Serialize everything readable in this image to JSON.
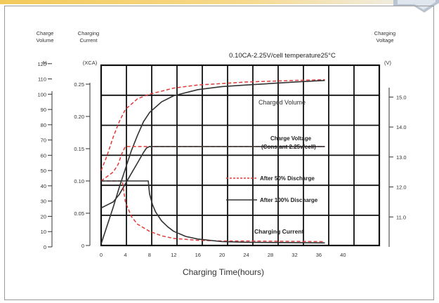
{
  "chart_data": {
    "type": "line",
    "title": "0.10CA-2.25V/cell  temperature25°C",
    "xlabel": "Charging Time(hours)",
    "axes": {
      "volume": {
        "label_line1": "Charge",
        "label_line2": "Volume",
        "unit": "%",
        "range": [
          0,
          130
        ],
        "ticks": [
          "0",
          "10",
          "20",
          "30",
          "40",
          "50",
          "60",
          "70",
          "80",
          "90",
          "100",
          "110",
          "120"
        ]
      },
      "current": {
        "label_line1": "Charging",
        "label_line2": "Current",
        "unit": "(XCA)",
        "range": [
          0,
          0.25
        ],
        "ticks": [
          "0",
          "0.05",
          "0.10",
          "0.15",
          "0.20",
          "0.25"
        ]
      },
      "voltage": {
        "label_line1": "Charging",
        "label_line2": "Voltage",
        "unit": "(V)",
        "range": [
          10.0,
          15.5
        ],
        "ticks": [
          "11.0",
          "12.0",
          "13.0",
          "14.0",
          "15.0"
        ]
      },
      "x": {
        "range": [
          0,
          46
        ],
        "ticks": [
          "0",
          "4",
          "8",
          "12",
          "16",
          "20",
          "24",
          "28",
          "32",
          "36",
          "40"
        ]
      }
    },
    "grid": true,
    "annotations": {
      "charged_volume": "Charged Volume",
      "charge_voltage_1": "Charge Voltage",
      "charge_voltage_2": "(Constant 2.25v/cell)",
      "charging_current": "Charging Current"
    },
    "legend": {
      "placement": "center-right",
      "entries": [
        {
          "label": "After 50% Discharge",
          "style": "dashed",
          "color": "#e03a3a"
        },
        {
          "label": "After 100% Discharge",
          "style": "solid",
          "color": "#333333"
        }
      ]
    },
    "series": [
      {
        "condition": "after_50",
        "quantity": "charged_volume",
        "axis": "volume",
        "x": [
          0,
          1,
          2,
          3,
          4,
          6,
          8,
          12,
          16,
          20,
          24,
          28,
          32,
          37
        ],
        "y": [
          50,
          60,
          72,
          82,
          90,
          97,
          100,
          104,
          106,
          107,
          108,
          108.5,
          109,
          109.5
        ]
      },
      {
        "condition": "after_100",
        "quantity": "charged_volume",
        "axis": "volume",
        "x": [
          0,
          1,
          2,
          3,
          4,
          5,
          6,
          7,
          8,
          10,
          12,
          16,
          20,
          24,
          28,
          32,
          37
        ],
        "y": [
          2,
          14,
          26,
          39,
          51,
          63,
          73,
          82,
          88,
          95,
          99,
          103,
          105,
          106,
          107,
          108,
          109
        ]
      },
      {
        "condition": "after_50",
        "quantity": "charge_voltage",
        "axis": "voltage",
        "x": [
          0,
          1,
          2,
          2.8,
          3.4,
          4,
          37
        ],
        "y": [
          12.2,
          12.35,
          12.5,
          12.75,
          13.1,
          13.35,
          13.35
        ]
      },
      {
        "condition": "after_100",
        "quantity": "charge_voltage",
        "axis": "voltage",
        "x": [
          0,
          1,
          2,
          3,
          4,
          5,
          6,
          7,
          7.5,
          8,
          37
        ],
        "y": [
          11.3,
          11.4,
          11.5,
          11.75,
          12.1,
          12.45,
          12.8,
          13.15,
          13.3,
          13.35,
          13.35
        ]
      },
      {
        "condition": "after_50",
        "quantity": "charging_current",
        "axis": "current",
        "x": [
          0,
          3.5,
          4,
          5,
          6,
          8,
          10,
          12,
          16,
          20,
          24,
          37
        ],
        "y": [
          0.1,
          0.1,
          0.068,
          0.045,
          0.033,
          0.022,
          0.015,
          0.011,
          0.008,
          0.007,
          0.007,
          0.006
        ]
      },
      {
        "condition": "after_100",
        "quantity": "charging_current",
        "axis": "current",
        "x": [
          0,
          7.8,
          8,
          8.5,
          9,
          10,
          11,
          12,
          14,
          16,
          20,
          24,
          37
        ],
        "y": [
          0.1,
          0.1,
          0.08,
          0.063,
          0.052,
          0.038,
          0.029,
          0.022,
          0.014,
          0.01,
          0.006,
          0.005,
          0.004
        ]
      }
    ]
  }
}
